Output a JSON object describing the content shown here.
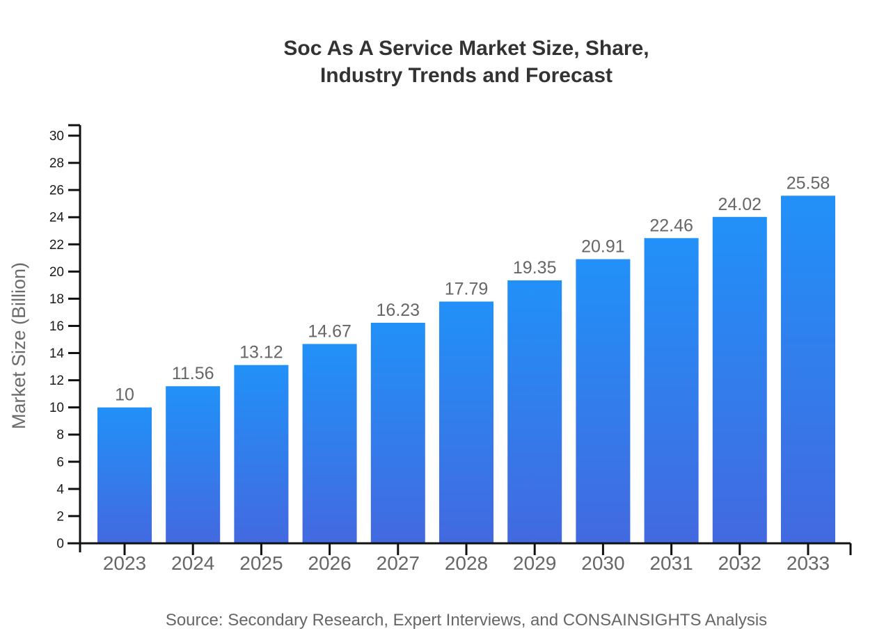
{
  "page": {
    "background": "#ffffff"
  },
  "chart_data": {
    "type": "bar",
    "title_lines": [
      "Soc As A Service Market Size, Share,",
      "Industry Trends and Forecast"
    ],
    "title": "Soc As A Service Market Size, Share, Industry Trends and Forecast",
    "xlabel": "",
    "ylabel": "Market Size (Billion)",
    "source": "Source: Secondary Research, Expert Interviews, and CONSAINSIGHTS Analysis",
    "categories": [
      "2023",
      "2024",
      "2025",
      "2026",
      "2027",
      "2028",
      "2029",
      "2030",
      "2031",
      "2032",
      "2033"
    ],
    "values": [
      10,
      11.56,
      13.12,
      14.67,
      16.23,
      17.79,
      19.35,
      20.91,
      22.46,
      24.02,
      25.58
    ],
    "value_labels": [
      "10",
      "11.56",
      "13.12",
      "14.67",
      "16.23",
      "17.79",
      "19.35",
      "20.91",
      "22.46",
      "24.02",
      "25.58"
    ],
    "ylim": [
      0,
      30
    ],
    "ytick_step": 2,
    "grid": false,
    "legend": "none",
    "colors": {
      "bar_gradient_top": "#2191F8",
      "bar_gradient_bottom": "#4369E0",
      "axis": "#111111",
      "y_tick_label": "#1a1a1a",
      "category_label": "#666666",
      "value_label": "#666666",
      "title": "#333333",
      "ylabel": "#6b6b6b",
      "caption": "#666666",
      "background": "#ffffff"
    }
  }
}
